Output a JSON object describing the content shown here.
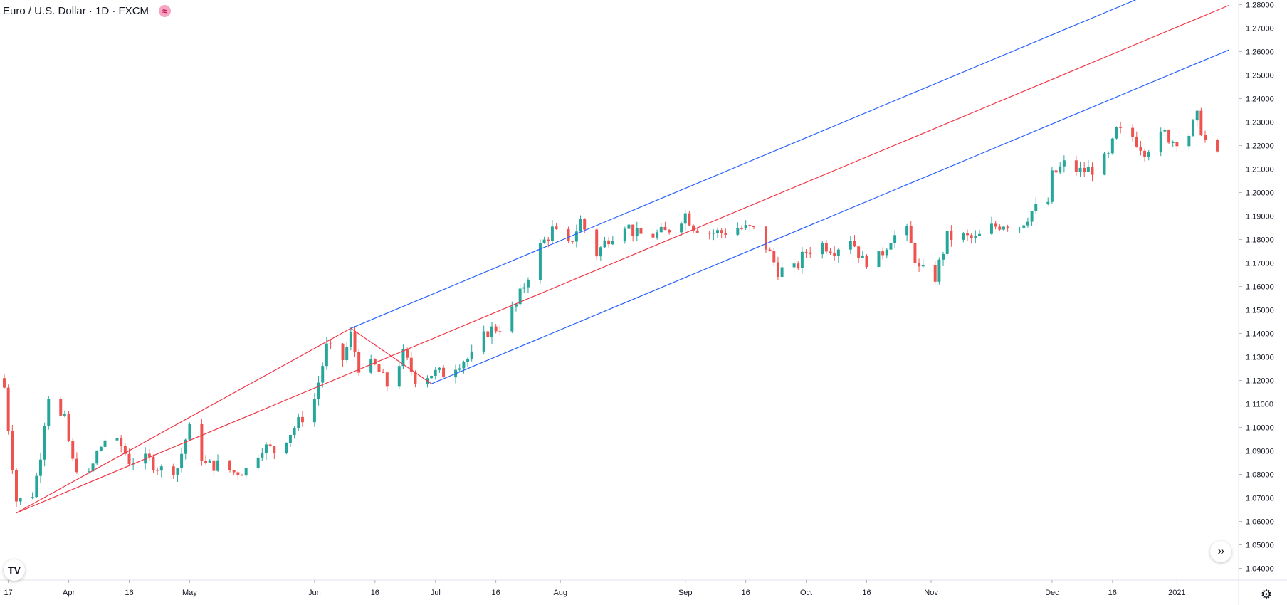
{
  "legend": {
    "symbol_title": "Euro / U.S. Dollar · 1D · FXCM",
    "indicator_icon": "approx-equal-icon"
  },
  "controls": {
    "logo_text": "TV",
    "scroll_icon": "double-chevron-right-icon",
    "settings_icon": "gear-icon"
  },
  "colors": {
    "up": "#26a69a",
    "down": "#ef5350",
    "pitchfork_median": "#f23645",
    "pitchfork_tines": "#2962ff",
    "axis_text": "#131722",
    "border": "#e0e3eb"
  },
  "chart_data": {
    "type": "candlestick",
    "title": "Euro / U.S. Dollar · 1D · FXCM",
    "ylim": [
      1.035,
      1.282
    ],
    "y_ticks": [
      "1.28000",
      "1.27000",
      "1.26000",
      "1.25000",
      "1.24000",
      "1.23000",
      "1.22000",
      "1.21000",
      "1.20000",
      "1.19000",
      "1.18000",
      "1.17000",
      "1.16000",
      "1.15000",
      "1.14000",
      "1.13000",
      "1.12000",
      "1.11000",
      "1.10000",
      "1.09000",
      "1.08000",
      "1.07000",
      "1.06000",
      "1.05000",
      "1.04000"
    ],
    "x_range": [
      "2020-03-16",
      "2021-01-11"
    ],
    "x_ticks": [
      {
        "label": "17",
        "date": "2020-03-17"
      },
      {
        "label": "Apr",
        "date": "2020-04-01"
      },
      {
        "label": "16",
        "date": "2020-04-16"
      },
      {
        "label": "May",
        "date": "2020-05-01"
      },
      {
        "label": "Jun",
        "date": "2020-06-01"
      },
      {
        "label": "16",
        "date": "2020-06-16"
      },
      {
        "label": "Jul",
        "date": "2020-07-01"
      },
      {
        "label": "16",
        "date": "2020-07-16"
      },
      {
        "label": "Aug",
        "date": "2020-08-01"
      },
      {
        "label": "Sep",
        "date": "2020-09-01"
      },
      {
        "label": "16",
        "date": "2020-09-16"
      },
      {
        "label": "Oct",
        "date": "2020-10-01"
      },
      {
        "label": "16",
        "date": "2020-10-16"
      },
      {
        "label": "Nov",
        "date": "2020-11-01"
      },
      {
        "label": "Dec",
        "date": "2020-12-01"
      },
      {
        "label": "16",
        "date": "2020-12-16"
      },
      {
        "label": "2021",
        "date": "2021-01-01"
      }
    ],
    "price_path": [
      [
        "2020-03-16",
        1.117
      ],
      [
        "2020-03-17",
        1.1
      ],
      [
        "2020-03-19",
        1.069
      ],
      [
        "2020-03-20",
        1.069
      ],
      [
        "2020-03-23",
        1.072
      ],
      [
        "2020-03-24",
        1.079
      ],
      [
        "2020-03-25",
        1.089
      ],
      [
        "2020-03-26",
        1.103
      ],
      [
        "2020-03-27",
        1.114
      ],
      [
        "2020-03-30",
        1.104
      ],
      [
        "2020-03-31",
        1.103
      ],
      [
        "2020-04-02",
        1.085
      ],
      [
        "2020-04-06",
        1.079
      ],
      [
        "2020-04-08",
        1.089
      ],
      [
        "2020-04-10",
        1.095
      ],
      [
        "2020-04-14",
        1.092
      ],
      [
        "2020-04-16",
        1.086
      ],
      [
        "2020-04-21",
        1.086
      ],
      [
        "2020-04-24",
        1.082
      ],
      [
        "2020-04-28",
        1.083
      ],
      [
        "2020-04-30",
        1.095
      ],
      [
        "2020-05-01",
        1.099
      ],
      [
        "2020-05-05",
        1.084
      ],
      [
        "2020-05-08",
        1.084
      ],
      [
        "2020-05-12",
        1.081
      ],
      [
        "2020-05-15",
        1.082
      ],
      [
        "2020-05-19",
        1.092
      ],
      [
        "2020-05-22",
        1.09
      ],
      [
        "2020-05-26",
        1.098
      ],
      [
        "2020-05-28",
        1.102
      ],
      [
        "2020-06-01",
        1.112
      ],
      [
        "2020-06-04",
        1.134
      ],
      [
        "2020-06-08",
        1.129
      ],
      [
        "2020-06-10",
        1.139
      ],
      [
        "2020-06-12",
        1.126
      ],
      [
        "2020-06-16",
        1.126
      ],
      [
        "2020-06-19",
        1.118
      ],
      [
        "2020-06-23",
        1.131
      ],
      [
        "2020-06-26",
        1.121
      ],
      [
        "2020-06-30",
        1.123
      ],
      [
        "2020-07-03",
        1.123
      ],
      [
        "2020-07-07",
        1.128
      ],
      [
        "2020-07-10",
        1.13
      ],
      [
        "2020-07-14",
        1.141
      ],
      [
        "2020-07-17",
        1.143
      ],
      [
        "2020-07-21",
        1.152
      ],
      [
        "2020-07-24",
        1.165
      ],
      [
        "2020-07-27",
        1.177
      ],
      [
        "2020-07-30",
        1.184
      ],
      [
        "2020-08-03",
        1.177
      ],
      [
        "2020-08-06",
        1.188
      ],
      [
        "2020-08-10",
        1.174
      ],
      [
        "2020-08-13",
        1.181
      ],
      [
        "2020-08-17",
        1.187
      ],
      [
        "2020-08-20",
        1.182
      ],
      [
        "2020-08-24",
        1.182
      ],
      [
        "2020-08-27",
        1.183
      ],
      [
        "2020-09-01",
        1.191
      ],
      [
        "2020-09-03",
        1.186
      ],
      [
        "2020-09-07",
        1.183
      ],
      [
        "2020-09-10",
        1.183
      ],
      [
        "2020-09-14",
        1.185
      ],
      [
        "2020-09-18",
        1.184
      ],
      [
        "2020-09-21",
        1.177
      ],
      [
        "2020-09-24",
        1.167
      ],
      [
        "2020-09-28",
        1.167
      ],
      [
        "2020-10-01",
        1.175
      ],
      [
        "2020-10-05",
        1.178
      ],
      [
        "2020-10-08",
        1.176
      ],
      [
        "2020-10-12",
        1.181
      ],
      [
        "2020-10-15",
        1.171
      ],
      [
        "2020-10-19",
        1.172
      ],
      [
        "2020-10-22",
        1.181
      ],
      [
        "2020-10-26",
        1.183
      ],
      [
        "2020-10-29",
        1.167
      ],
      [
        "2020-11-02",
        1.164
      ],
      [
        "2020-11-05",
        1.181
      ],
      [
        "2020-11-09",
        1.181
      ],
      [
        "2020-11-12",
        1.18
      ],
      [
        "2020-11-16",
        1.185
      ],
      [
        "2020-11-19",
        1.187
      ],
      [
        "2020-11-23",
        1.186
      ],
      [
        "2020-11-26",
        1.192
      ],
      [
        "2020-11-30",
        1.196
      ],
      [
        "2020-12-01",
        1.207
      ],
      [
        "2020-12-04",
        1.212
      ],
      [
        "2020-12-08",
        1.209
      ],
      [
        "2020-12-11",
        1.21
      ],
      [
        "2020-12-15",
        1.215
      ],
      [
        "2020-12-17",
        1.226
      ],
      [
        "2020-12-21",
        1.224
      ],
      [
        "2020-12-24",
        1.218
      ],
      [
        "2020-12-29",
        1.225
      ],
      [
        "2020-12-31",
        1.222
      ],
      [
        "2021-01-04",
        1.225
      ],
      [
        "2021-01-06",
        1.232
      ],
      [
        "2021-01-08",
        1.222
      ],
      [
        "2021-01-11",
        1.215
      ]
    ],
    "pitchfork": {
      "type": "andrews-pitchfork",
      "pivots": [
        {
          "date": "2020-03-19",
          "price": 1.0636
        },
        {
          "date": "2020-06-10",
          "price": 1.1422
        },
        {
          "date": "2020-06-30",
          "price": 1.1186
        }
      ],
      "extends_to": "2021-01-14"
    }
  }
}
